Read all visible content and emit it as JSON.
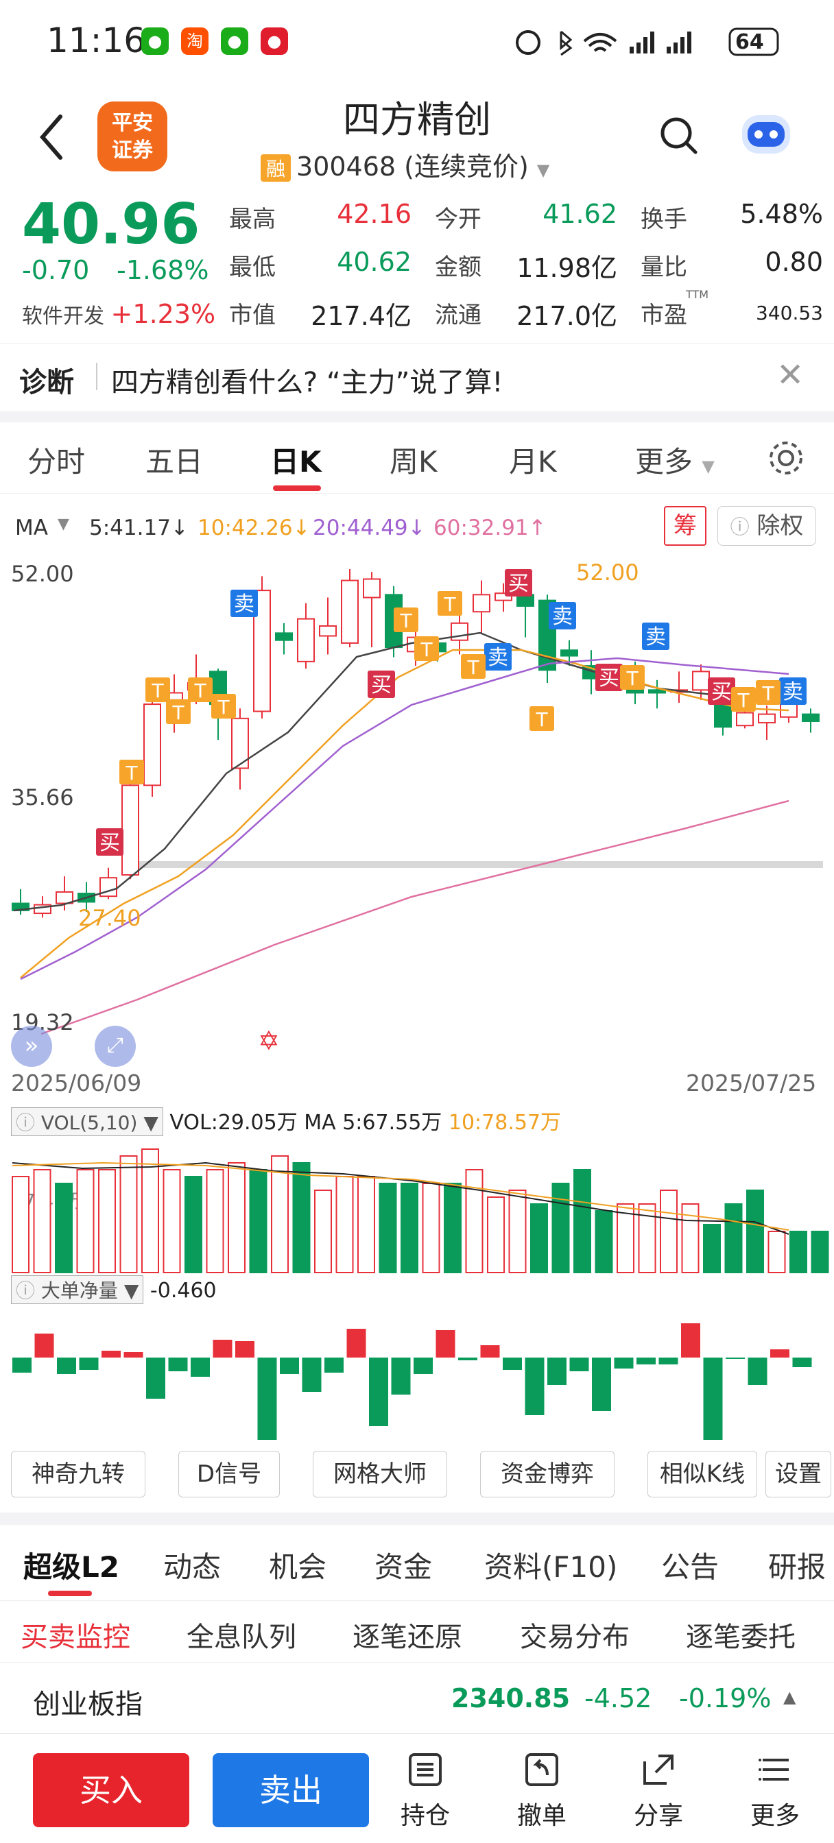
{
  "status": {
    "time": "11:16",
    "battery": "64"
  },
  "header": {
    "title": "四方精创",
    "tag": "融",
    "code": "300468 (连续竞价)",
    "brand": "平安\n证券"
  },
  "quote": {
    "price": "40.96",
    "change": "-0.70",
    "change_pct": "-1.68%",
    "sector": "软件开发",
    "sector_pct": "+1.23%",
    "high_label": "最高",
    "high": "42.16",
    "low_label": "最低",
    "low": "40.62",
    "mcap_label": "市值",
    "mcap": "217.4亿",
    "open_label": "今开",
    "open": "41.62",
    "amount_label": "金额",
    "amount": "11.98亿",
    "float_label": "流通",
    "float": "217.0亿",
    "turnover_label": "换手",
    "turnover": "5.48%",
    "vr_label": "量比",
    "vr": "0.80",
    "pe_label": "市盈",
    "pe_sup": "TTM",
    "pe": "340.53"
  },
  "diag": {
    "label": "诊断",
    "text": "四方精创看什么? “主力”说了算!"
  },
  "ktabs": [
    "分时",
    "五日",
    "日K",
    "周K",
    "月K",
    "更多"
  ],
  "ma": {
    "label": "MA",
    "ma5": "5:41.17↓",
    "ma10": "10:42.26↓",
    "ma20": "20:44.49↓",
    "ma60": "60:32.91↑",
    "chou": "筹",
    "chuquan": "除权"
  },
  "chart": {
    "y_top": "52.00",
    "y_mid": "35.66",
    "y_bot": "19.32",
    "max_note": "52.00",
    "min_note": "27.40",
    "date_start": "2025/06/09",
    "date_end": "2025/07/25",
    "buy_mark": "买",
    "sell_mark": "卖",
    "t_mark": "T"
  },
  "vol": {
    "label": "VOL(5,10)",
    "vol": "VOL:29.05万",
    "ma5": "MA 5:67.55万",
    "ma10": "10:78.57万",
    "axis": "97.41万"
  },
  "flow": {
    "label": "大单净量",
    "value": "-0.460"
  },
  "tools": [
    "神奇九转",
    "D信号",
    "网格大师",
    "资金博弈",
    "相似K线",
    "设置"
  ],
  "btabs": [
    "超级L2",
    "动态",
    "机会",
    "资金",
    "资料(F10)",
    "公告",
    "研报"
  ],
  "stabs": [
    "买卖监控",
    "全息队列",
    "逐笔还原",
    "交易分布",
    "逐笔委托"
  ],
  "index": {
    "name": "创业板指",
    "price": "2340.85",
    "change": "-4.52",
    "pct": "-0.19%"
  },
  "bottom": {
    "buy": "买入",
    "sell": "卖出",
    "hold": "持仓",
    "cancel": "撤单",
    "share": "分享",
    "more": "更多"
  }
}
